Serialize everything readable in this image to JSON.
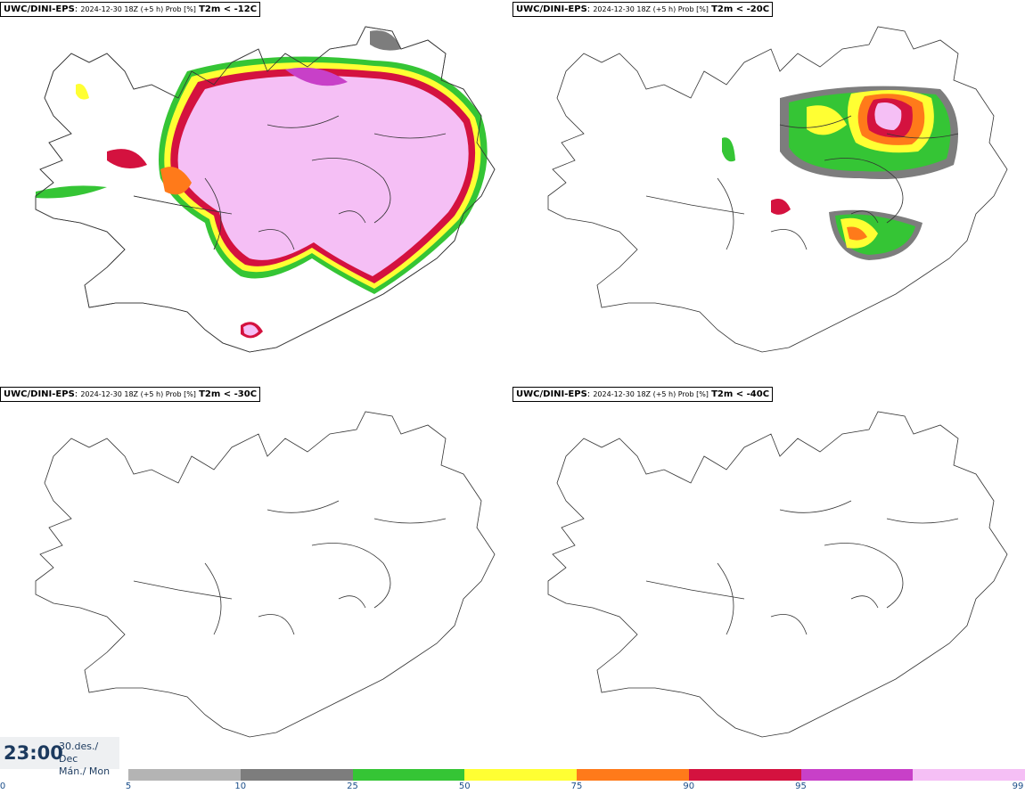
{
  "panels": [
    {
      "model": "UWC/DINI-EPS",
      "meta": "2024-12-30 18Z (+5 h) Prob [%]",
      "param": "T2m < -12C"
    },
    {
      "model": "UWC/DINI-EPS",
      "meta": "2024-12-30 18Z (+5 h) Prob [%]",
      "param": "T2m < -20C"
    },
    {
      "model": "UWC/DINI-EPS",
      "meta": "2024-12-30 18Z (+5 h) Prob [%]",
      "param": "T2m < -30C"
    },
    {
      "model": "UWC/DINI-EPS",
      "meta": "2024-12-30 18Z (+5 h) Prob [%]",
      "param": "T2m < -40C"
    }
  ],
  "time": {
    "clock": "23:00",
    "date_line1": "30.des./ Dec",
    "date_line2": "Mán./ Mon"
  },
  "colorbar": {
    "ticks": [
      "0",
      "5",
      "10",
      "25",
      "50",
      "75",
      "90",
      "95",
      "99"
    ],
    "colors": [
      "#b4b4b4",
      "#7d7d7d",
      "#35c535",
      "#ffff33",
      "#ff7a1a",
      "#d4123f",
      "#c840c8",
      "#f5bff5"
    ]
  }
}
